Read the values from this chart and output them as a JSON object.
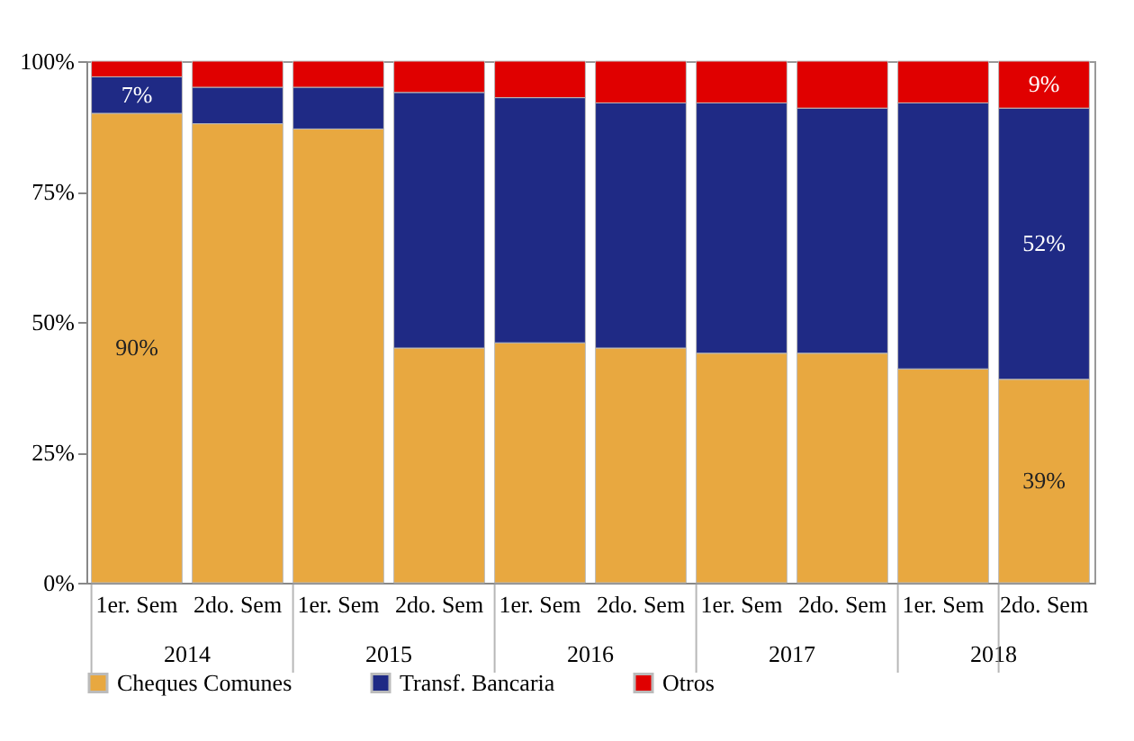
{
  "chart_data": {
    "type": "bar",
    "stacked": true,
    "categories": [
      "1er. Sem",
      "2do. Sem",
      "1er. Sem",
      "2do. Sem",
      "1er. Sem",
      "2do. Sem",
      "1er. Sem",
      "2do. Sem",
      "1er. Sem",
      "2do. Sem"
    ],
    "annotations": [
      "2014",
      "2015",
      "2016",
      "2017",
      "2018"
    ],
    "series": [
      {
        "name": "Cheques Comunes",
        "color": "#e8a840",
        "values": [
          90,
          88,
          87,
          45,
          46,
          45,
          44,
          44,
          41,
          39
        ],
        "value_labels": [
          "90%",
          null,
          null,
          null,
          null,
          null,
          null,
          null,
          null,
          "39%"
        ]
      },
      {
        "name": "Transf. Bancaria",
        "color": "#1f2a85",
        "values": [
          7,
          7,
          8,
          49,
          47,
          47,
          48,
          47,
          51,
          52
        ],
        "value_labels": [
          "7%",
          null,
          null,
          null,
          null,
          null,
          null,
          null,
          null,
          "52%"
        ]
      },
      {
        "name": "Otros",
        "color": "#e00000",
        "values": [
          3,
          5,
          5,
          6,
          7,
          8,
          8,
          9,
          8,
          9
        ],
        "value_labels": [
          null,
          null,
          null,
          null,
          null,
          null,
          null,
          null,
          null,
          "9%"
        ]
      }
    ],
    "ylim": [
      0,
      100
    ],
    "yticks": [
      {
        "value": 0,
        "label": "0%"
      },
      {
        "value": 25,
        "label": "25%"
      },
      {
        "value": 50,
        "label": "50%"
      },
      {
        "value": 75,
        "label": "75%"
      },
      {
        "value": 100,
        "label": "100%"
      }
    ],
    "grid": false,
    "legend": "bottom"
  }
}
